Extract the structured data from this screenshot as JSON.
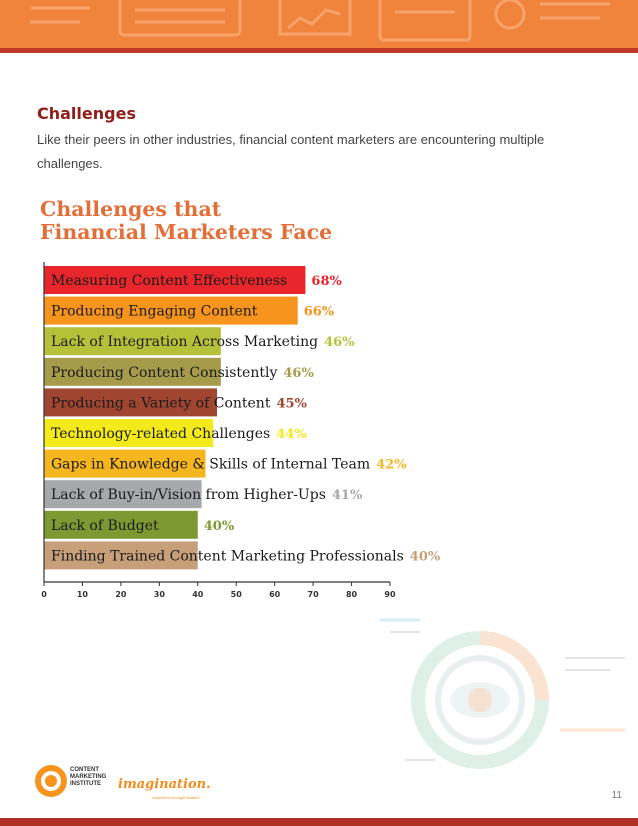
{
  "section": {
    "title": "Challenges",
    "intro": "Like their peers in other industries, financial content marketers are encountering multiple challenges."
  },
  "chart_data": {
    "type": "bar",
    "orientation": "horizontal",
    "title_lines": [
      "Challenges that",
      "Financial Marketers Face"
    ],
    "categories": [
      "Measuring Content Effectiveness",
      "Producing Engaging Content",
      "Lack of Integration Across Marketing",
      "Producing Content Consistently",
      "Producing a Variety of Content",
      "Technology-related Challenges",
      "Gaps in Knowledge & Skills of Internal Team",
      "Lack of Buy-in/Vision from Higher-Ups",
      "Lack of Budget",
      "Finding Trained Content Marketing Professionals"
    ],
    "values": [
      68,
      66,
      46,
      46,
      45,
      44,
      42,
      41,
      40,
      40
    ],
    "value_labels": [
      "68%",
      "66%",
      "46%",
      "46%",
      "45%",
      "44%",
      "42%",
      "41%",
      "40%",
      "40%"
    ],
    "colors": [
      "#e8262b",
      "#f7941d",
      "#b6c13a",
      "#a59b4a",
      "#a0452f",
      "#f2ea1a",
      "#f5b61f",
      "#a6a8ab",
      "#7d9a32",
      "#c7a07a"
    ],
    "label_colors": [
      "#e8262b",
      "#f7941d",
      "#b6c13a",
      "#a59b4a",
      "#a0452f",
      "#f2ea1a",
      "#f5b61f",
      "#a6a8ab",
      "#7d9a32",
      "#c7a07a"
    ],
    "xticks": [
      0,
      10,
      20,
      30,
      40,
      50,
      60,
      70,
      80,
      90
    ],
    "xlim": [
      0,
      90
    ],
    "grid": false
  },
  "footer": {
    "page_number": "11",
    "cmi_lines": [
      "CONTENT",
      "MARKETING",
      "INSTITUTE"
    ],
    "imagination": "imagination.",
    "imagination_tagline": "content for thought leaders"
  },
  "colors": {
    "banner": "#f0843c",
    "accent_dark": "#8f1d1a",
    "chart_title": "#e36f38"
  }
}
